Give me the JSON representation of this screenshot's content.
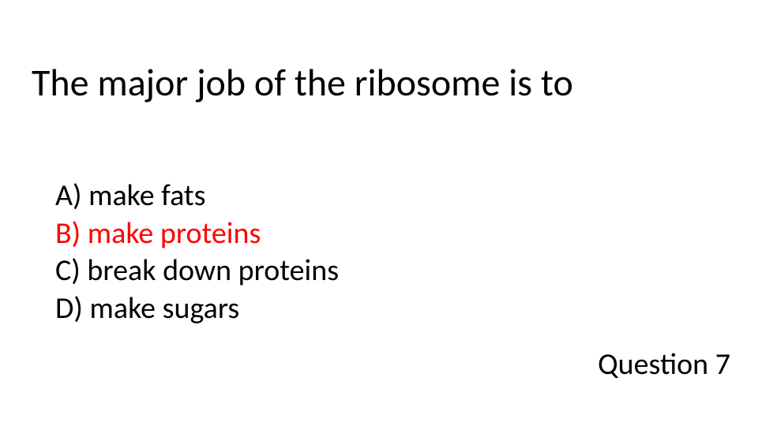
{
  "slide": {
    "title": "The major job of the ribosome is to",
    "options": [
      {
        "letter": "A",
        "text": "make fats",
        "color": "#000000"
      },
      {
        "letter": "B",
        "text": "make proteins",
        "color": "#ff0000"
      },
      {
        "letter": "C",
        "text": "break down proteins",
        "color": "#000000"
      },
      {
        "letter": "D",
        "text": "make sugars",
        "color": "#000000"
      }
    ],
    "question_number_label": "Question 7",
    "background_color": "#ffffff",
    "title_fontsize": 48,
    "option_fontsize": 38,
    "number_fontsize": 38,
    "title_color": "#000000",
    "highlight_color": "#ff0000",
    "font_family": "Calibri"
  }
}
